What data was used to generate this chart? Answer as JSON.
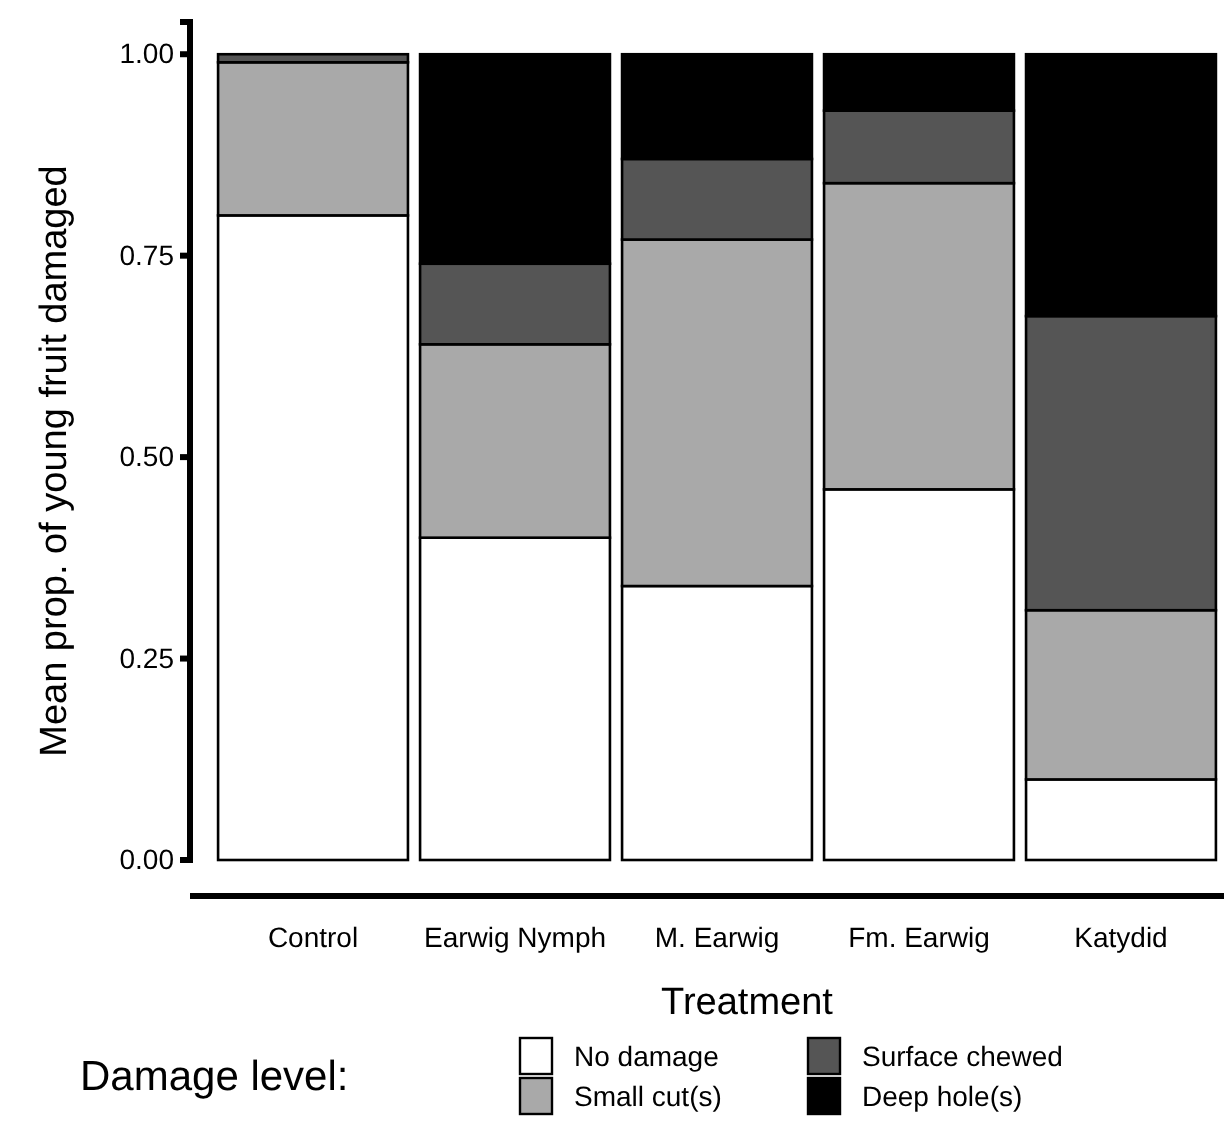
{
  "chart_data": {
    "type": "bar",
    "stacked": true,
    "xlabel": "Treatment",
    "ylabel": "Mean prop. of young fruit damaged",
    "legend_title": "Damage level:",
    "legend": "bottom",
    "categories": [
      "Control",
      "Earwig Nymph",
      "M. Earwig",
      "Fm. Earwig",
      "Katydid"
    ],
    "ylim": [
      0,
      1.04
    ],
    "yticks": [
      {
        "value": 0,
        "label": "0.00"
      },
      {
        "value": 0.25,
        "label": "0.25"
      },
      {
        "value": 0.5,
        "label": "0.50"
      },
      {
        "value": 0.75,
        "label": "0.75"
      },
      {
        "value": 1,
        "label": "1.00"
      }
    ],
    "series": [
      {
        "name": "No damage",
        "color": "#ffffff",
        "values": [
          0.8,
          0.4,
          0.34,
          0.46,
          0.1
        ]
      },
      {
        "name": "Small cut(s)",
        "color": "#a9a9a9",
        "values": [
          0.19,
          0.24,
          0.43,
          0.38,
          0.21
        ]
      },
      {
        "name": "Surface chewed",
        "color": "#555555",
        "values": [
          0.01,
          0.1,
          0.1,
          0.09,
          0.365
        ]
      },
      {
        "name": "Deep hole(s)",
        "color": "#000000",
        "values": [
          0,
          0.26,
          0.13,
          0.07,
          0.325
        ]
      }
    ]
  }
}
